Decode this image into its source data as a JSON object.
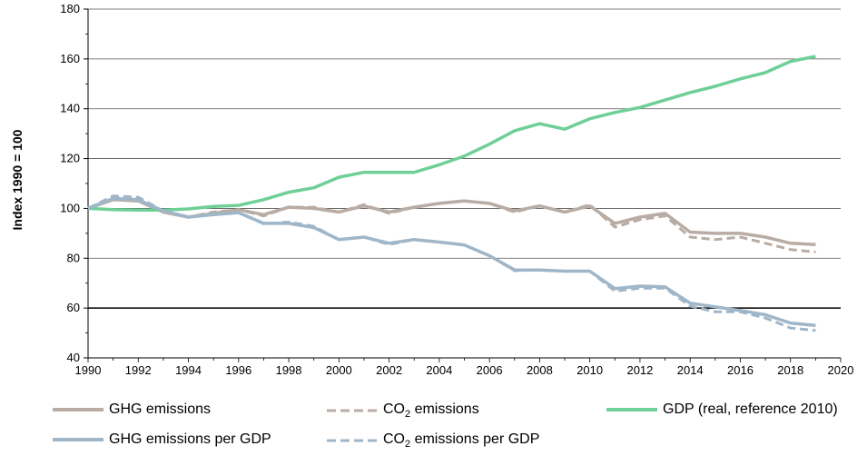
{
  "chart_data": {
    "type": "line",
    "title": "",
    "ylabel": "Index 1990 = 100",
    "xlabel": "",
    "xlim": [
      1990,
      2020
    ],
    "ylim": [
      40,
      180
    ],
    "xticks": [
      1990,
      1992,
      1994,
      1996,
      1998,
      2000,
      2002,
      2004,
      2006,
      2008,
      2010,
      2012,
      2014,
      2016,
      2018,
      2020
    ],
    "yticks": [
      40,
      60,
      80,
      100,
      120,
      140,
      160,
      180
    ],
    "grid": "horizontal",
    "legend_position": "bottom",
    "x": [
      1990,
      1991,
      1992,
      1993,
      1994,
      1995,
      1996,
      1997,
      1998,
      1999,
      2000,
      2001,
      2002,
      2003,
      2004,
      2005,
      2006,
      2007,
      2008,
      2009,
      2010,
      2011,
      2012,
      2013,
      2014,
      2015,
      2016,
      2017,
      2018,
      2019
    ],
    "series": [
      {
        "name": "GHG emissions",
        "color": "#b8aca4",
        "dash": "solid",
        "values": [
          100,
          103.5,
          103,
          98.5,
          96.5,
          98,
          99.5,
          97.5,
          100.5,
          100,
          98.5,
          101,
          98.5,
          100.5,
          102,
          103,
          102,
          99,
          101,
          98.5,
          101,
          94,
          96.5,
          98,
          90.5,
          90,
          90,
          88.5,
          86,
          85.5
        ]
      },
      {
        "name": "CO2 emissions",
        "color": "#b8aca4",
        "dash": "dashed",
        "values": [
          100,
          104.5,
          103.5,
          98.5,
          96.5,
          98.5,
          99.5,
          97,
          100.5,
          100.5,
          98.5,
          101.5,
          98,
          100.5,
          102,
          103,
          102,
          98.5,
          101,
          98.5,
          101.5,
          92.5,
          95.5,
          97,
          88.5,
          87.5,
          88.5,
          86,
          83.5,
          82.5
        ]
      },
      {
        "name": "GDP (real, reference 2010)",
        "color": "#6fcf97",
        "dash": "solid",
        "values": [
          100,
          99.5,
          99.3,
          99.3,
          99.8,
          100.8,
          101.2,
          103.5,
          106.5,
          108.3,
          112.5,
          114.5,
          114.5,
          114.5,
          117.5,
          121,
          125.8,
          131.2,
          134,
          131.8,
          136,
          138.5,
          140.5,
          143.5,
          146.5,
          149,
          152,
          154.5,
          159,
          161
        ]
      },
      {
        "name": "GHG emissions per GDP",
        "color": "#9fb6c9",
        "dash": "solid",
        "values": [
          100,
          104,
          103.5,
          99,
          96.5,
          97.5,
          98.3,
          94,
          94,
          92.3,
          87.5,
          88.5,
          86,
          87.5,
          86.5,
          85.3,
          81,
          75.3,
          75.3,
          74.8,
          74.8,
          67.8,
          68.8,
          68.5,
          62,
          60.5,
          59,
          57.3,
          54,
          53
        ]
      },
      {
        "name": "CO2 emissions per GDP",
        "color": "#9fb6c9",
        "dash": "dashed",
        "values": [
          100,
          105,
          104.5,
          99,
          96.5,
          97.8,
          98.3,
          93.8,
          94.5,
          92.8,
          87.5,
          88.5,
          85.5,
          87.5,
          86.5,
          85.3,
          81,
          75,
          75.3,
          74.8,
          74.8,
          66.8,
          68,
          68,
          60.8,
          58.5,
          58.5,
          56,
          52,
          51
        ]
      }
    ]
  },
  "legend": {
    "ghg": {
      "pre": "GHG emissions"
    },
    "co2": {
      "pre": "CO",
      "sub": "2",
      "post": " emissions"
    },
    "gdp": {
      "pre": "GDP (real, reference 2010)"
    },
    "ghg_gdp": {
      "pre": "GHG emissions per GDP"
    },
    "co2_gdp": {
      "pre": "CO",
      "sub": "2",
      "post": " emissions per GDP"
    }
  }
}
